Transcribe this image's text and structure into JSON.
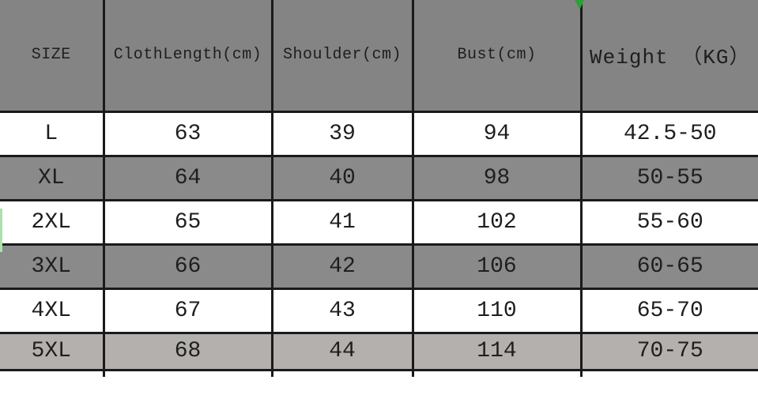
{
  "chart_data": {
    "type": "table",
    "title": "Garment size chart",
    "columns": [
      "SIZE",
      "ClothLength(cm)",
      "Shoulder(cm)",
      "Bust(cm)",
      "Weight （KG）"
    ],
    "rows": [
      [
        "L",
        "63",
        "39",
        "94",
        "42.5-50"
      ],
      [
        "XL",
        "64",
        "40",
        "98",
        "50-55"
      ],
      [
        "2XL",
        "65",
        "41",
        "102",
        "55-60"
      ],
      [
        "3XL",
        "66",
        "42",
        "106",
        "60-65"
      ],
      [
        "4XL",
        "67",
        "43",
        "110",
        "65-70"
      ],
      [
        "5XL",
        "68",
        "44",
        "114",
        "70-75"
      ]
    ],
    "layout_hints": {
      "header_filled": true,
      "row_banding": [
        "white",
        "gray",
        "white",
        "gray",
        "white",
        "light-gray"
      ],
      "gridlines": "dark 3px borders, outer top/left/right edges cropped"
    }
  },
  "table": {
    "columns": [
      {
        "key": "size",
        "label": "SIZE"
      },
      {
        "key": "cloth_length",
        "label": "ClothLength(cm)"
      },
      {
        "key": "shoulder",
        "label": "Shoulder(cm)"
      },
      {
        "key": "bust",
        "label": "Bust(cm)"
      },
      {
        "key": "weight",
        "label": "Weight （KG）"
      }
    ],
    "rows": [
      {
        "size": "L",
        "cloth_length": "63",
        "shoulder": "39",
        "bust": "94",
        "weight": "42.5-50",
        "shade": "white"
      },
      {
        "size": "XL",
        "cloth_length": "64",
        "shoulder": "40",
        "bust": "98",
        "weight": "50-55",
        "shade": "gray"
      },
      {
        "size": "2XL",
        "cloth_length": "65",
        "shoulder": "41",
        "bust": "102",
        "weight": "55-60",
        "shade": "white"
      },
      {
        "size": "3XL",
        "cloth_length": "66",
        "shoulder": "42",
        "bust": "106",
        "weight": "60-65",
        "shade": "gray"
      },
      {
        "size": "4XL",
        "cloth_length": "67",
        "shoulder": "43",
        "bust": "110",
        "weight": "65-70",
        "shade": "white"
      },
      {
        "size": "5XL",
        "cloth_length": "68",
        "shoulder": "44",
        "bust": "114",
        "weight": "70-75",
        "shade": "light-gray"
      }
    ]
  },
  "colors": {
    "page_bg": "#ffffff",
    "header_bg": "#848484",
    "gray_row_bg": "#8a8a8a",
    "light_gray_row_bg": "#b3b0ad",
    "white_row_bg": "#ffffff",
    "border": "#1a1a1a",
    "text": "#1e1e1e",
    "green_flag": "#2f9e38",
    "green_stripe": "#aedfae"
  }
}
